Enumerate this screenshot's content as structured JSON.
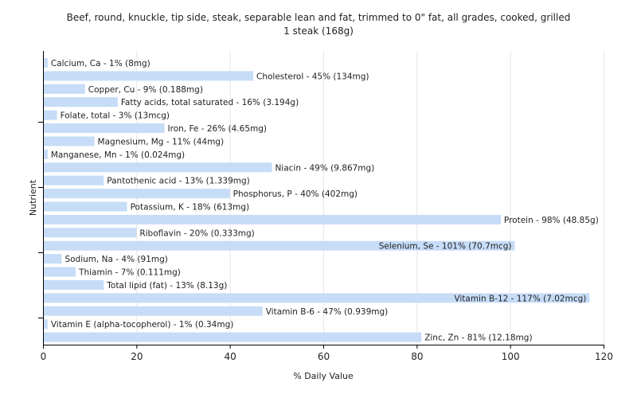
{
  "chart_data": {
    "type": "bar",
    "orientation": "horizontal",
    "title": "Beef, round, knuckle, tip side, steak, separable lean and fat, trimmed to 0\" fat, all grades, cooked, grilled",
    "subtitle": "1 steak (168g)",
    "xlabel": "% Daily Value",
    "ylabel": "Nutrient",
    "xlim": [
      0,
      120
    ],
    "xticks": [
      0,
      20,
      40,
      60,
      80,
      100,
      120
    ],
    "grid": true,
    "bar_color": "#c6dcf7",
    "categories": [
      "Calcium, Ca",
      "Cholesterol",
      "Copper, Cu",
      "Fatty acids, total saturated",
      "Folate, total",
      "Iron, Fe",
      "Magnesium, Mg",
      "Manganese, Mn",
      "Niacin",
      "Pantothenic acid",
      "Phosphorus, P",
      "Potassium, K",
      "Protein",
      "Riboflavin",
      "Selenium, Se",
      "Sodium, Na",
      "Thiamin",
      "Total lipid (fat)",
      "Vitamin B-12",
      "Vitamin B-6",
      "Vitamin E (alpha-tocopherol)",
      "Zinc, Zn"
    ],
    "values": [
      1,
      45,
      9,
      16,
      3,
      26,
      11,
      1,
      49,
      13,
      40,
      18,
      98,
      20,
      101,
      4,
      7,
      13,
      117,
      47,
      1,
      81
    ],
    "labels": [
      "Calcium, Ca - 1% (8mg)",
      "Cholesterol - 45% (134mg)",
      "Copper, Cu - 9% (0.188mg)",
      "Fatty acids, total saturated - 16% (3.194g)",
      "Folate, total - 3% (13mcg)",
      "Iron, Fe - 26% (4.65mg)",
      "Magnesium, Mg - 11% (44mg)",
      "Manganese, Mn - 1% (0.024mg)",
      "Niacin - 49% (9.867mg)",
      "Pantothenic acid - 13% (1.339mg)",
      "Phosphorus, P - 40% (402mg)",
      "Potassium, K - 18% (613mg)",
      "Protein - 98% (48.85g)",
      "Riboflavin - 20% (0.333mg)",
      "Selenium, Se - 101% (70.7mcg)",
      "Sodium, Na - 4% (91mg)",
      "Thiamin - 7% (0.111mg)",
      "Total lipid (fat) - 13% (8.13g)",
      "Vitamin B-12 - 117% (7.02mcg)",
      "Vitamin B-6 - 47% (0.939mg)",
      "Vitamin E (alpha-tocopherol) - 1% (0.34mg)",
      "Zinc, Zn - 81% (12.18mg)"
    ]
  }
}
